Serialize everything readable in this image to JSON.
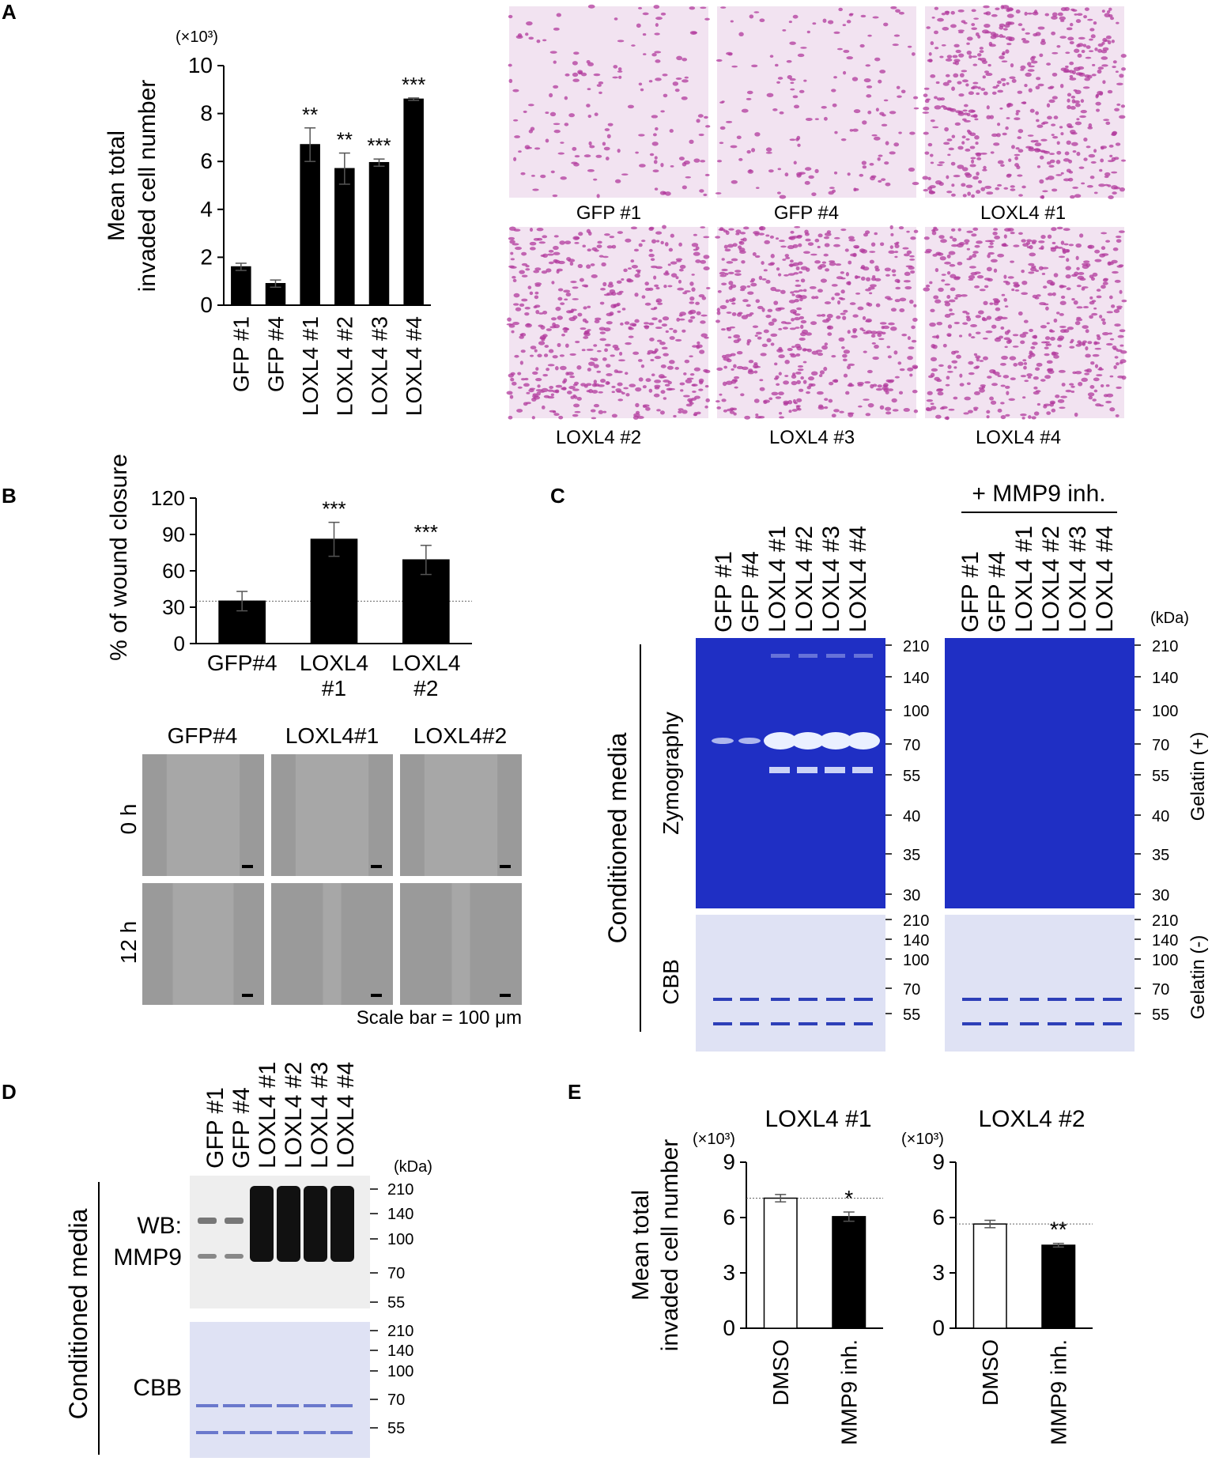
{
  "colors": {
    "bar_black": "#000000",
    "bar_white": "#ffffff",
    "gel_blue": "#1f2fc4",
    "gel_band": "#eaf0ff",
    "cbb_bg": "#dfe2f4",
    "cbb_band": "#2d3fb8",
    "histology_bg": "#f2e3f1",
    "histology_cell": "#b23a9c",
    "wound_bg": "#9a9a9a",
    "wb_bg": "#eeeeee",
    "wb_band": "#111111"
  },
  "panels": {
    "A": {
      "letter": "A",
      "micrograph_labels": [
        "GFP #1",
        "GFP #4",
        "LOXL4 #1",
        "LOXL4 #2",
        "LOXL4 #3",
        "LOXL4 #4"
      ]
    },
    "B": {
      "letter": "B",
      "col_labels": [
        "GFP#4",
        "LOXL4#1",
        "LOXL4#2"
      ],
      "row_labels": [
        "0 h",
        "12 h"
      ],
      "scale_bar": "Scale bar = 100 μm"
    },
    "C": {
      "letter": "C",
      "inhibitor_label": "+ MMP9 inh.",
      "lane_labels": [
        "GFP #1",
        "GFP #4",
        "LOXL4 #1",
        "LOXL4 #2",
        "LOXL4 #3",
        "LOXL4 #4"
      ],
      "kda_unit": "(kDa)",
      "zymo_markers": [
        "210",
        "140",
        "100",
        "70",
        "55",
        "40",
        "35",
        "30"
      ],
      "cbb_markers": [
        "210",
        "140",
        "100",
        "70",
        "55"
      ],
      "side_label": "Conditioned media",
      "zymo_label": "Zymography",
      "cbb_label": "CBB",
      "gelatin_plus": "Gelatin (+)",
      "gelatin_minus": "Gelatin (-)"
    },
    "D": {
      "letter": "D",
      "lane_labels": [
        "GFP #1",
        "GFP #4",
        "LOXL4 #1",
        "LOXL4 #2",
        "LOXL4 #3",
        "LOXL4 #4"
      ],
      "kda_unit": "(kDa)",
      "wb_markers": [
        "210",
        "140",
        "100",
        "70",
        "55"
      ],
      "cbb_markers": [
        "210",
        "140",
        "100",
        "70",
        "55"
      ],
      "wb_label_1": "WB:",
      "wb_label_2": "MMP9",
      "cbb_label": "CBB",
      "side_label": "Conditioned media"
    },
    "E": {
      "letter": "E"
    }
  },
  "chart_data": [
    {
      "id": "A",
      "type": "bar",
      "title": "",
      "ylabel": "Mean total invaded cell number",
      "y_multiplier": "(×10³)",
      "categories": [
        "GFP #1",
        "GFP #4",
        "LOXL4 #1",
        "LOXL4 #2",
        "LOXL4 #3",
        "LOXL4 #4"
      ],
      "values": [
        1.6,
        0.9,
        6.7,
        5.7,
        5.95,
        8.6
      ],
      "errors": [
        0.15,
        0.15,
        0.7,
        0.65,
        0.15,
        0.05
      ],
      "significance": [
        "",
        "",
        "**",
        "**",
        "***",
        "***"
      ],
      "ylim": [
        0,
        10
      ],
      "yticks": [
        "0",
        "2",
        "4",
        "6",
        "8",
        "10"
      ],
      "grid": false
    },
    {
      "id": "B",
      "type": "bar",
      "title": "",
      "ylabel": "% of wound closure",
      "categories": [
        "GFP#4",
        "LOXL4 #1",
        "LOXL4 #2"
      ],
      "values": [
        35,
        86,
        69
      ],
      "errors": [
        8,
        14,
        12
      ],
      "significance": [
        "",
        "***",
        "***"
      ],
      "reference_line": 35,
      "ylim": [
        0,
        120
      ],
      "yticks": [
        "0",
        "30",
        "60",
        "90",
        "120"
      ],
      "grid": false
    },
    {
      "id": "E1",
      "type": "bar",
      "title": "LOXL4 #1",
      "ylabel": "Mean total invaded cell number",
      "y_multiplier": "(×10³)",
      "categories": [
        "DMSO",
        "MMP9 inh."
      ],
      "values": [
        7.05,
        6.05
      ],
      "errors": [
        0.2,
        0.25
      ],
      "significance": [
        "",
        "*"
      ],
      "reference_line": 7.05,
      "ylim": [
        0,
        9
      ],
      "yticks": [
        "0",
        "3",
        "6",
        "9"
      ],
      "grid": false
    },
    {
      "id": "E2",
      "type": "bar",
      "title": "LOXL4 #2",
      "ylabel": "",
      "y_multiplier": "(×10³)",
      "categories": [
        "DMSO",
        "MMP9 inh."
      ],
      "values": [
        5.65,
        4.5
      ],
      "errors": [
        0.2,
        0.1
      ],
      "significance": [
        "",
        "**"
      ],
      "reference_line": 5.65,
      "ylim": [
        0,
        9
      ],
      "yticks": [
        "0",
        "3",
        "6",
        "9"
      ],
      "grid": false
    }
  ]
}
